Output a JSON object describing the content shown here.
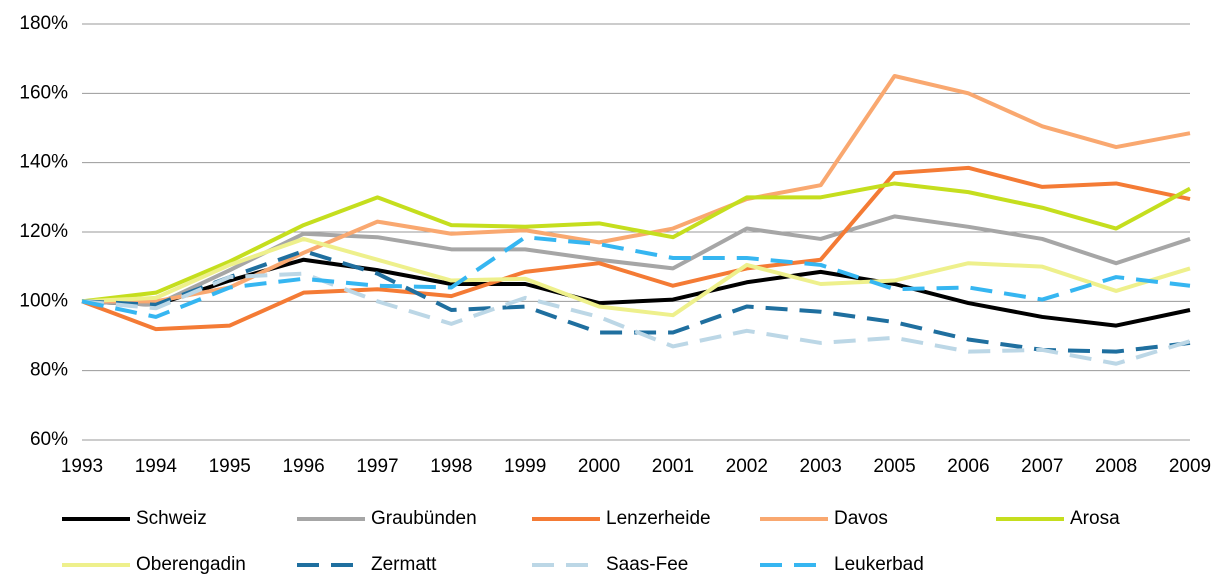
{
  "chart_data": {
    "type": "line",
    "categories": [
      "1993",
      "1994",
      "1995",
      "1996",
      "1997",
      "1998",
      "1999",
      "2000",
      "2001",
      "2002",
      "2003",
      "2005",
      "2006",
      "2007",
      "2008",
      "2009"
    ],
    "ylim": [
      60,
      180
    ],
    "yticks": [
      {
        "value": 60,
        "label": "60%"
      },
      {
        "value": 80,
        "label": "80%"
      },
      {
        "value": 100,
        "label": "100%"
      },
      {
        "value": 120,
        "label": "120%"
      },
      {
        "value": 140,
        "label": "140%"
      },
      {
        "value": 160,
        "label": "160%"
      },
      {
        "value": 180,
        "label": "180%"
      }
    ],
    "grid": true,
    "legend": "bottom",
    "series": [
      {
        "name": "Schweiz",
        "color": "#000000",
        "dashed": false,
        "values": [
          100,
          99,
          106,
          112,
          109,
          105,
          105,
          99.5,
          100.5,
          105.5,
          108.5,
          105,
          99.5,
          95.5,
          93,
          97.5
        ]
      },
      {
        "name": "Graubünden",
        "color": "#a6a6a6",
        "dashed": false,
        "values": [
          100,
          99,
          109,
          119.5,
          118.5,
          115,
          115,
          112,
          109.5,
          121,
          118,
          124.5,
          121.5,
          118,
          111,
          118
        ]
      },
      {
        "name": "Lenzerheide",
        "color": "#f47b35",
        "dashed": false,
        "values": [
          100,
          92,
          93,
          102.5,
          103.5,
          101.5,
          108.5,
          111,
          104.5,
          109.5,
          112,
          137,
          138.5,
          133,
          134,
          129.5
        ]
      },
      {
        "name": "Davos",
        "color": "#f9a870",
        "dashed": false,
        "values": [
          100,
          100,
          104,
          114,
          123,
          119.5,
          120.5,
          117,
          121,
          129.5,
          133.5,
          165,
          160,
          150.5,
          144.5,
          148.5
        ]
      },
      {
        "name": "Arosa",
        "color": "#c5de1e",
        "dashed": false,
        "values": [
          100,
          102.5,
          111.5,
          122,
          130,
          122,
          121.5,
          122.5,
          118.5,
          130,
          130,
          134,
          131.5,
          127,
          121,
          132.5
        ]
      },
      {
        "name": "Oberengadin",
        "color": "#eef08c",
        "dashed": false,
        "values": [
          100,
          101,
          110.5,
          118,
          112,
          106,
          106.5,
          98.5,
          96,
          110.5,
          105,
          106,
          111,
          110,
          103,
          109.5
        ]
      },
      {
        "name": "Zermatt",
        "color": "#1f6f9f",
        "dashed": true,
        "values": [
          100,
          99,
          107,
          114.5,
          108,
          97.5,
          98.5,
          91,
          91,
          98.5,
          97,
          94,
          89,
          86,
          85.5,
          88
        ]
      },
      {
        "name": "Saas-Fee",
        "color": "#bcd7e6",
        "dashed": true,
        "values": [
          100,
          98,
          107,
          108,
          100,
          93.5,
          101,
          95.5,
          87,
          91.5,
          88,
          89.5,
          85.5,
          86,
          82,
          88.5
        ]
      },
      {
        "name": "Leukerbad",
        "color": "#36b6f1",
        "dashed": true,
        "values": [
          100,
          95.5,
          104,
          106.5,
          104.5,
          104,
          118.5,
          116.5,
          112.5,
          112.5,
          110.5,
          103.5,
          104,
          100.5,
          107,
          104.5
        ]
      }
    ]
  }
}
